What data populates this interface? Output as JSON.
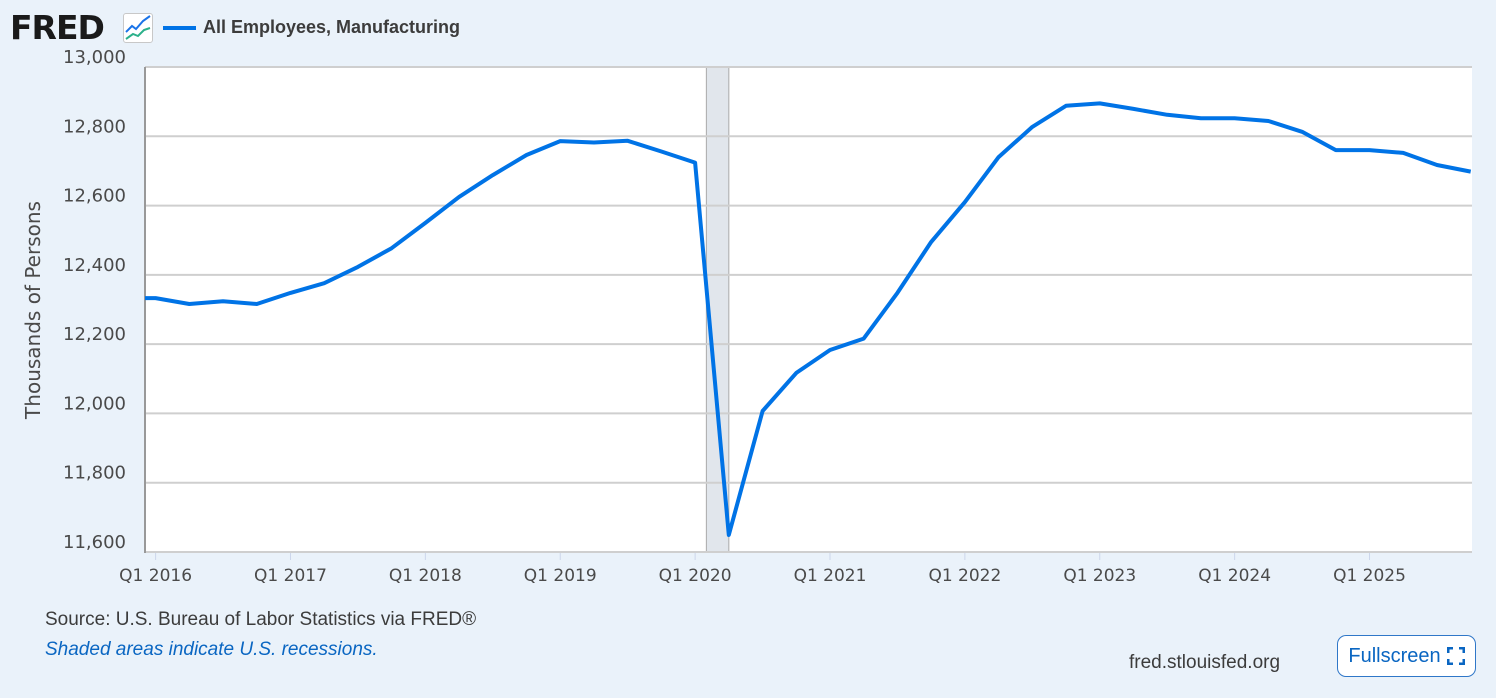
{
  "header": {
    "logo_text": "FRED",
    "legend_label": "All Employees, Manufacturing"
  },
  "footer": {
    "source": "Source: U.S. Bureau of Labor Statistics via FRED®",
    "recession_note": "Shaded areas indicate U.S. recessions.",
    "site": "fred.stlouisfed.org",
    "fullscreen_label": "Fullscreen"
  },
  "colors": {
    "series": "#0073e6",
    "recession": "#e1e6ec",
    "background": "#eaf2fa"
  },
  "chart_data": {
    "type": "line",
    "title": "",
    "xlabel": "",
    "ylabel": "Thousands of Persons",
    "ylim": [
      11600,
      13000
    ],
    "yticks": [
      "11,600",
      "11,800",
      "12,000",
      "12,200",
      "12,400",
      "12,600",
      "12,800",
      "13,000"
    ],
    "ytick_values": [
      11600,
      11800,
      12000,
      12200,
      12400,
      12600,
      12800,
      13000
    ],
    "xticks": [
      "Q1 2016",
      "Q1 2017",
      "Q1 2018",
      "Q1 2019",
      "Q1 2020",
      "Q1 2021",
      "Q1 2022",
      "Q1 2023",
      "Q1 2024",
      "Q1 2025"
    ],
    "grid": true,
    "legend_position": "top-left",
    "recessions": [
      {
        "start": "2020-02",
        "end": "2020-04"
      }
    ],
    "series": [
      {
        "name": "All Employees, Manufacturing",
        "x": [
          "Q4 2015",
          "Q1 2016",
          "Q2 2016",
          "Q3 2016",
          "Q4 2016",
          "Q1 2017",
          "Q2 2017",
          "Q3 2017",
          "Q4 2017",
          "Q1 2018",
          "Q2 2018",
          "Q3 2018",
          "Q4 2018",
          "Q1 2019",
          "Q2 2019",
          "Q3 2019",
          "Q4 2019",
          "Q1 2020",
          "Q2 2020",
          "Q3 2020",
          "Q4 2020",
          "Q1 2021",
          "Q2 2021",
          "Q3 2021",
          "Q4 2021",
          "Q1 2022",
          "Q2 2022",
          "Q3 2022",
          "Q4 2022",
          "Q1 2023",
          "Q2 2023",
          "Q3 2023",
          "Q4 2023",
          "Q1 2024",
          "Q2 2024",
          "Q3 2024",
          "Q4 2024",
          "Q1 2025",
          "Q2 2025",
          "Q3 2025",
          "Q4 2025"
        ],
        "values": [
          12333,
          12333,
          12316,
          12324,
          12316,
          12348,
          12376,
          12423,
          12477,
          12550,
          12625,
          12688,
          12746,
          12786,
          12782,
          12787,
          12756,
          12724,
          11649,
          12007,
          12117,
          12183,
          12216,
          12348,
          12495,
          12610,
          12740,
          12827,
          12888,
          12895,
          12879,
          12862,
          12852,
          12852,
          12844,
          12813,
          12760,
          12760,
          12752,
          12717,
          12698
        ]
      }
    ]
  }
}
